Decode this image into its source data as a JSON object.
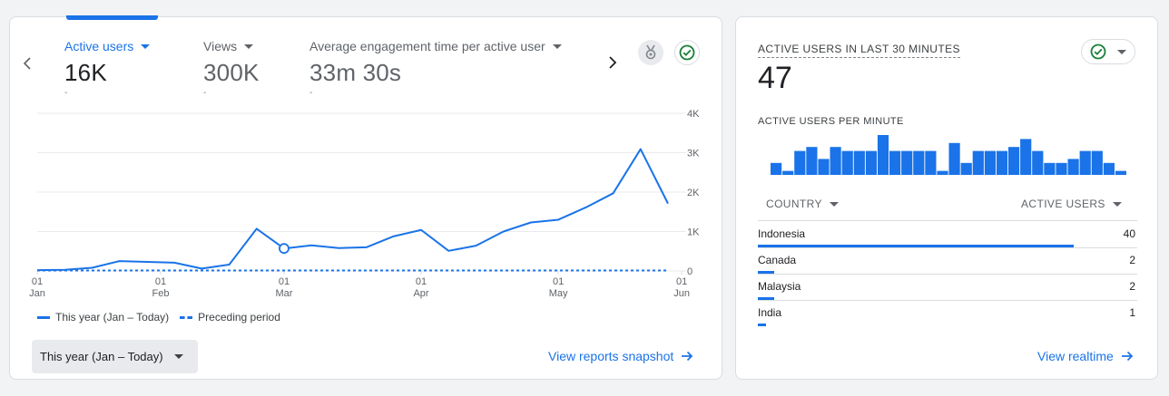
{
  "left_card": {
    "metrics": [
      {
        "label": "Active users",
        "value": "16K",
        "delta": "-"
      },
      {
        "label": "Views",
        "value": "300K",
        "delta": "-"
      },
      {
        "label": "Average engagement time per active user",
        "value": "33m 30s",
        "delta": "-"
      }
    ],
    "legend": {
      "this_year": "This year (Jan – Today)",
      "preceding": "Preceding period"
    },
    "period_select": "This year (Jan – Today)",
    "view_link": "View reports snapshot"
  },
  "chart_data": {
    "type": "line",
    "y_ticks": [
      "4K",
      "3K",
      "2K",
      "1K",
      "0"
    ],
    "ylim": [
      0,
      4000
    ],
    "x_labels": [
      {
        "day": "01",
        "month": "Jan",
        "index": 0
      },
      {
        "day": "01",
        "month": "Feb",
        "index": 4.5
      },
      {
        "day": "01",
        "month": "Mar",
        "index": 9
      },
      {
        "day": "01",
        "month": "Apr",
        "index": 14
      },
      {
        "day": "01",
        "month": "May",
        "index": 19
      },
      {
        "day": "01",
        "month": "Jun",
        "index": 23.5
      }
    ],
    "series": [
      {
        "name": "This year (Jan – Today)",
        "values": [
          20,
          30,
          80,
          250,
          230,
          210,
          60,
          160,
          1070,
          570,
          650,
          580,
          600,
          880,
          1040,
          510,
          640,
          1000,
          1230,
          1300,
          1610,
          1970,
          3090,
          1710
        ]
      },
      {
        "name": "Preceding period",
        "values": [
          0,
          0,
          0,
          0,
          0,
          0,
          0,
          0,
          0,
          0,
          0,
          0,
          0,
          0,
          0,
          0,
          0,
          0,
          0,
          0,
          0,
          0,
          0,
          0
        ]
      }
    ],
    "highlight_index": 9,
    "grid": true
  },
  "right_card": {
    "title": "ACTIVE USERS IN LAST 30 MINUTES",
    "value": "47",
    "subtitle": "ACTIVE USERS PER MINUTE",
    "per_minute": [
      3,
      1,
      6,
      7,
      4,
      7,
      6,
      6,
      6,
      10,
      6,
      6,
      6,
      6,
      1,
      8,
      3,
      6,
      6,
      6,
      7,
      9,
      6,
      3,
      3,
      4,
      6,
      6,
      3,
      1
    ],
    "table": {
      "col_country": "COUNTRY",
      "col_users": "ACTIVE USERS",
      "rows": [
        {
          "country": "Indonesia",
          "users": "40",
          "share": 0.833
        },
        {
          "country": "Canada",
          "users": "2",
          "share": 0.042
        },
        {
          "country": "Malaysia",
          "users": "2",
          "share": 0.042
        },
        {
          "country": "India",
          "users": "1",
          "share": 0.021
        }
      ]
    },
    "view_link": "View realtime"
  },
  "colors": {
    "accent": "#1a73e8",
    "status_ok": "#188038"
  }
}
